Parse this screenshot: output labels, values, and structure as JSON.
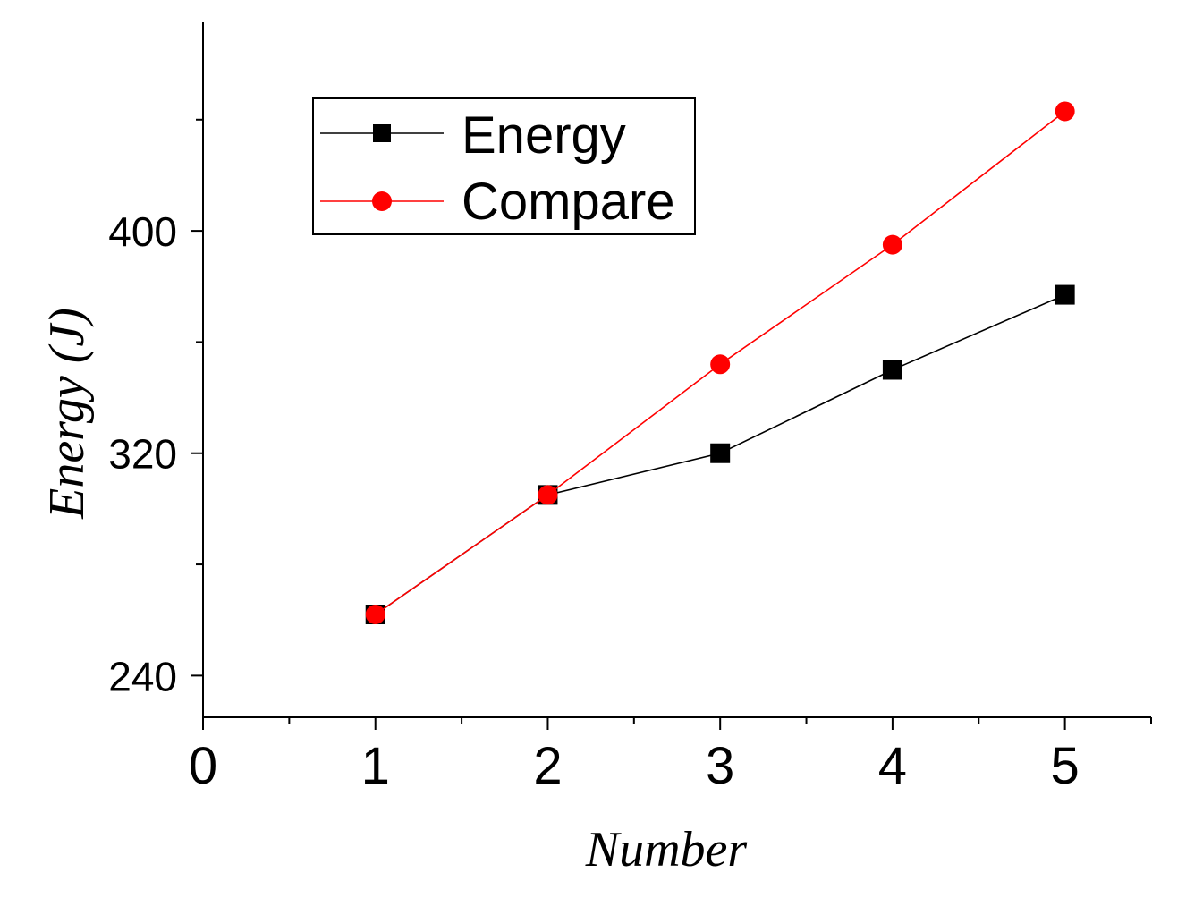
{
  "chart_data": {
    "type": "line",
    "title": "",
    "xlabel": "Number",
    "ylabel": "Energy (J)",
    "x": [
      1,
      2,
      3,
      4,
      5
    ],
    "xlim": [
      0,
      5.5
    ],
    "ylim": [
      225,
      475
    ],
    "x_ticks": [
      0,
      1,
      2,
      3,
      4,
      5
    ],
    "y_ticks": [
      240,
      320,
      400
    ],
    "grid": false,
    "legend_position": "top-left",
    "series": [
      {
        "name": "Energy",
        "marker": "square",
        "color": "#000000",
        "values": [
          262,
          305,
          320,
          350,
          377
        ]
      },
      {
        "name": "Compare",
        "marker": "circle",
        "color": "#ff0000",
        "values": [
          262,
          305,
          352,
          395,
          443
        ]
      }
    ]
  }
}
